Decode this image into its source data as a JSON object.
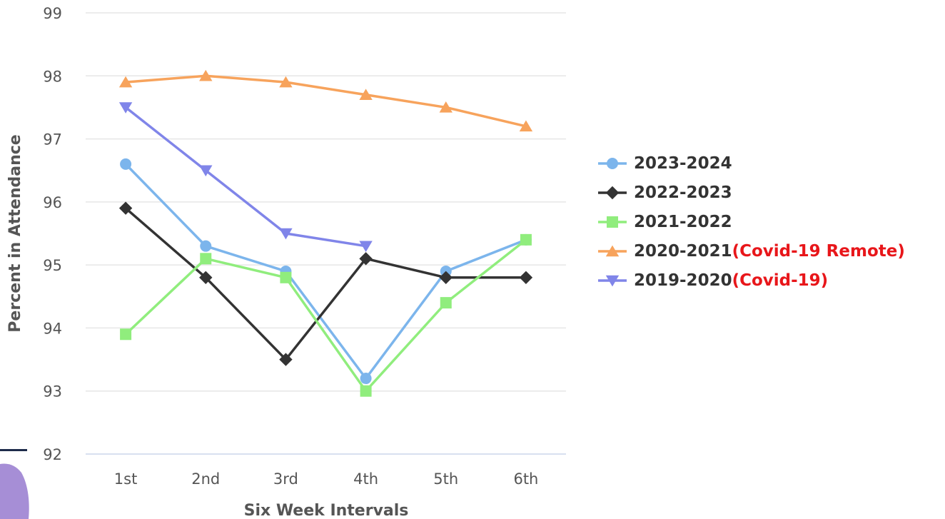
{
  "chart_data": {
    "type": "line",
    "title": "",
    "xlabel": "Six Week Intervals",
    "ylabel": "Percent in Attendance",
    "categories": [
      "1st",
      "2nd",
      "3rd",
      "4th",
      "5th",
      "6th"
    ],
    "ylim": [
      92,
      99
    ],
    "yticks": [
      92,
      93,
      94,
      95,
      96,
      97,
      98,
      99
    ],
    "grid": true,
    "legend_position": "right",
    "series": [
      {
        "name": "2023-2024",
        "note": "",
        "color": "#7cb5ec",
        "marker": "circle",
        "values": [
          96.6,
          95.3,
          94.9,
          93.2,
          94.9,
          95.4
        ]
      },
      {
        "name": "2022-2023",
        "note": "",
        "color": "#333333",
        "marker": "diamond",
        "values": [
          95.9,
          94.8,
          93.5,
          95.1,
          94.8,
          94.8
        ]
      },
      {
        "name": "2021-2022",
        "note": "",
        "color": "#90ed7d",
        "marker": "square",
        "values": [
          93.9,
          95.1,
          94.8,
          93.0,
          94.4,
          95.4
        ]
      },
      {
        "name": "2020-2021",
        "note": "(Covid-19 Remote)",
        "color": "#f7a35c",
        "marker": "triangle",
        "values": [
          97.9,
          98.0,
          97.9,
          97.7,
          97.5,
          97.2
        ]
      },
      {
        "name": "2019-2020",
        "note": "(Covid-19)",
        "color": "#8085e9",
        "marker": "triangle-down",
        "values": [
          97.5,
          96.5,
          95.5,
          95.3,
          null,
          null
        ]
      }
    ]
  }
}
